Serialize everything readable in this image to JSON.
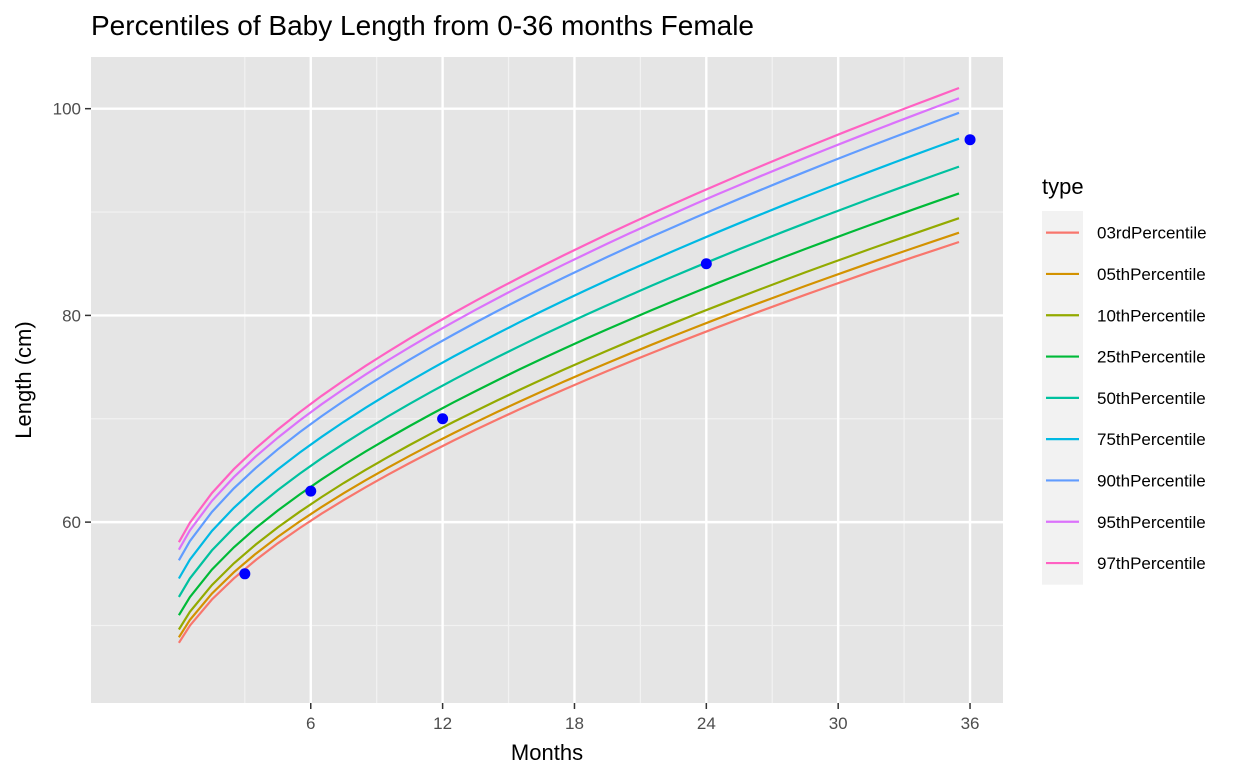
{
  "chart_data": {
    "type": "line",
    "title": "Percentiles of Baby Length from 0-36 months Female",
    "xlabel": "Months",
    "ylabel": "Length (cm)",
    "xlim": [
      -4,
      37.5
    ],
    "ylim": [
      42.5,
      105
    ],
    "x_ticks": [
      6,
      12,
      18,
      24,
      30,
      36
    ],
    "x_minor_ticks": [
      3,
      9,
      15,
      21,
      27,
      33
    ],
    "y_ticks": [
      60,
      80,
      100
    ],
    "y_minor_ticks": [
      50,
      70,
      90
    ],
    "grid": true,
    "panel_background": "#E5E5E5",
    "legend": {
      "title": "type",
      "position": "right"
    },
    "x": [
      0,
      0.5,
      1.5,
      2.5,
      3.5,
      4.5,
      5.5,
      6.5,
      7.5,
      8.5,
      9.5,
      10.5,
      11.5,
      12.5,
      13.5,
      14.5,
      15.5,
      16.5,
      17.5,
      18.5,
      19.5,
      20.5,
      21.5,
      22.5,
      23.5,
      24.5,
      25.5,
      26.5,
      27.5,
      28.5,
      29.5,
      30.5,
      31.5,
      32.5,
      33.5,
      34.5,
      35.5
    ],
    "series": [
      {
        "name": "03rdPercentile",
        "color": "#F8766D",
        "start": 45.1,
        "end": 87.1
      },
      {
        "name": "05thPercentile",
        "color": "#D39200",
        "start": 45.6,
        "end": 88.0
      },
      {
        "name": "10thPercentile",
        "color": "#93AA00",
        "start": 46.3,
        "end": 89.4
      },
      {
        "name": "25thPercentile",
        "color": "#00BA38",
        "start": 47.6,
        "end": 91.8
      },
      {
        "name": "50thPercentile",
        "color": "#00C19F",
        "start": 49.3,
        "end": 94.4
      },
      {
        "name": "75thPercentile",
        "color": "#00B9E3",
        "start": 51.0,
        "end": 97.1
      },
      {
        "name": "90thPercentile",
        "color": "#619CFF",
        "start": 52.7,
        "end": 99.6
      },
      {
        "name": "95thPercentile",
        "color": "#DB72FB",
        "start": 53.7,
        "end": 101.0
      },
      {
        "name": "97thPercentile",
        "color": "#FF61C3",
        "start": 54.4,
        "end": 102.0
      }
    ],
    "points": {
      "color": "#0000FF",
      "x": [
        3,
        6,
        12,
        24,
        36
      ],
      "y": [
        55,
        63,
        70,
        85,
        97
      ]
    }
  }
}
